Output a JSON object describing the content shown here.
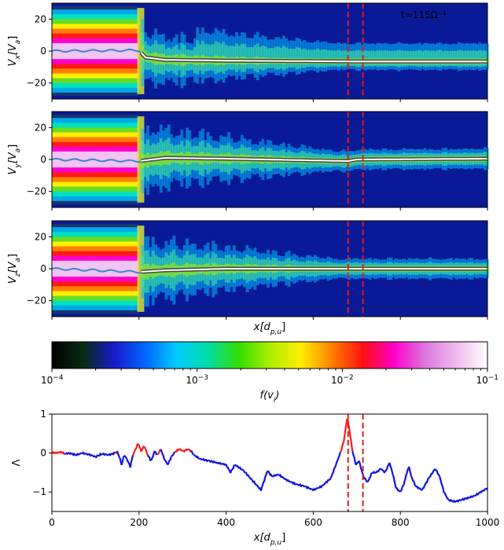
{
  "chart_data": [
    {
      "type": "heatmap",
      "ylabel": "V_x[V_a]",
      "ylabel_main": "V",
      "ylabel_sub": "x",
      "ylabel_unit": "[V",
      "ylabel_unit_sub": "a",
      "ylabel_close": "]",
      "ylim": [
        -30,
        30
      ],
      "yticks": [
        "20",
        "0",
        "−20"
      ],
      "ytick_values": [
        20,
        0,
        -20
      ],
      "annotation": "t=115Ω⁻¹",
      "mean_profile": [
        [
          0,
          0
        ],
        [
          200,
          0.5
        ],
        [
          215,
          -4
        ],
        [
          260,
          -5.5
        ],
        [
          400,
          -6
        ],
        [
          700,
          -6.5
        ],
        [
          1000,
          -6.5
        ]
      ]
    },
    {
      "type": "heatmap",
      "ylabel": "V_y[V_a]",
      "ylabel_main": "V",
      "ylabel_sub": "y",
      "ylabel_unit": "[V",
      "ylabel_unit_sub": "a",
      "ylabel_close": "]",
      "ylim": [
        -30,
        30
      ],
      "yticks": [
        "20",
        "0",
        "−20"
      ],
      "ytick_values": [
        20,
        0,
        -20
      ],
      "mean_profile": [
        [
          0,
          0
        ],
        [
          200,
          -1
        ],
        [
          260,
          1
        ],
        [
          400,
          0.5
        ],
        [
          680,
          -1
        ],
        [
          700,
          0
        ],
        [
          1000,
          0.5
        ]
      ]
    },
    {
      "type": "heatmap",
      "ylabel": "V_z[V_a]",
      "ylabel_main": "V",
      "ylabel_sub": "z",
      "ylabel_unit": "[V",
      "ylabel_unit_sub": "a",
      "ylabel_close": "]",
      "ylim": [
        -30,
        30
      ],
      "yticks": [
        "20",
        "0",
        "−20"
      ],
      "ytick_values": [
        20,
        0,
        -20
      ],
      "xlabel": "x[d_{p,u}]",
      "mean_profile": [
        [
          0,
          0
        ],
        [
          200,
          -2
        ],
        [
          260,
          -1
        ],
        [
          400,
          0
        ],
        [
          700,
          0
        ],
        [
          1000,
          0
        ]
      ]
    },
    {
      "type": "colorbar",
      "scale": "log",
      "label": "f(v_i)",
      "label_main": "f(v",
      "label_sub": "i",
      "label_close": ")",
      "ticks": [
        {
          "base": "10",
          "exp": "−4",
          "value": 0.0001
        },
        {
          "base": "10",
          "exp": "−3",
          "value": 0.001
        },
        {
          "base": "10",
          "exp": "−2",
          "value": 0.01
        },
        {
          "base": "10",
          "exp": "−1",
          "value": 0.1
        }
      ],
      "range": [
        0.0001,
        0.1
      ],
      "stops": [
        "#ffffff",
        "#eebbee",
        "#dd77dd",
        "#ff00cc",
        "#ff1010",
        "#ff7f00",
        "#ffee00",
        "#aaee00",
        "#33dd00",
        "#00ddaa",
        "#00ccff",
        "#0066ff",
        "#1a1acc",
        "#082a10",
        "#000000"
      ]
    },
    {
      "type": "line",
      "ylabel": "Λ",
      "xlabel": "x[d_{p,u}]",
      "xlabel_main": "x[d",
      "xlabel_sub": "p,u",
      "xlabel_close": "]",
      "xlim": [
        0,
        1000
      ],
      "ylim": [
        -1.5,
        1.0
      ],
      "xticks": [
        0,
        200,
        400,
        600,
        800,
        1000
      ],
      "yticks": [
        "1",
        "0",
        "−1"
      ],
      "ytick_values": [
        1,
        0,
        -1
      ],
      "series": [
        {
          "name": "Lambda",
          "colors": {
            "positive": "#ff1a1a",
            "negative": "#1414e6"
          },
          "points": [
            [
              0,
              0.02
            ],
            [
              10,
              0.0
            ],
            [
              20,
              0.03
            ],
            [
              30,
              -0.02
            ],
            [
              40,
              0.0
            ],
            [
              55,
              -0.05
            ],
            [
              70,
              0.0
            ],
            [
              90,
              -0.05
            ],
            [
              100,
              -0.1
            ],
            [
              115,
              -0.02
            ],
            [
              130,
              -0.05
            ],
            [
              145,
              0.0
            ],
            [
              150,
              0.03
            ],
            [
              155,
              -0.1
            ],
            [
              160,
              -0.3
            ],
            [
              166,
              -0.05
            ],
            [
              172,
              -0.15
            ],
            [
              180,
              -0.35
            ],
            [
              186,
              -0.05
            ],
            [
              192,
              0.1
            ],
            [
              198,
              0.25
            ],
            [
              205,
              0.05
            ],
            [
              212,
              0.18
            ],
            [
              220,
              -0.05
            ],
            [
              228,
              -0.2
            ],
            [
              236,
              0.05
            ],
            [
              242,
              -0.05
            ],
            [
              250,
              0.1
            ],
            [
              258,
              -0.15
            ],
            [
              266,
              -0.3
            ],
            [
              274,
              -0.1
            ],
            [
              282,
              0.02
            ],
            [
              292,
              0.1
            ],
            [
              302,
              0.05
            ],
            [
              312,
              0.1
            ],
            [
              320,
              0.05
            ],
            [
              326,
              -0.05
            ],
            [
              340,
              -0.15
            ],
            [
              360,
              -0.2
            ],
            [
              380,
              -0.25
            ],
            [
              400,
              -0.3
            ],
            [
              410,
              -0.5
            ],
            [
              420,
              -0.3
            ],
            [
              440,
              -0.45
            ],
            [
              460,
              -0.7
            ],
            [
              480,
              -0.95
            ],
            [
              495,
              -0.45
            ],
            [
              505,
              -0.6
            ],
            [
              520,
              -0.55
            ],
            [
              540,
              -0.7
            ],
            [
              560,
              -0.8
            ],
            [
              580,
              -0.85
            ],
            [
              600,
              -0.95
            ],
            [
              620,
              -0.85
            ],
            [
              640,
              -0.65
            ],
            [
              652,
              -0.3
            ],
            [
              662,
              0.0
            ],
            [
              670,
              0.3
            ],
            [
              678,
              0.9
            ],
            [
              683,
              0.6
            ],
            [
              690,
              0.05
            ],
            [
              698,
              -0.3
            ],
            [
              705,
              -0.2
            ],
            [
              715,
              -0.6
            ],
            [
              725,
              -0.75
            ],
            [
              735,
              -0.5
            ],
            [
              745,
              -0.5
            ],
            [
              755,
              -0.4
            ],
            [
              765,
              -0.5
            ],
            [
              775,
              -0.25
            ],
            [
              783,
              -0.55
            ],
            [
              790,
              -0.9
            ],
            [
              800,
              -1.0
            ],
            [
              808,
              -0.8
            ],
            [
              815,
              -0.5
            ],
            [
              820,
              -0.35
            ],
            [
              825,
              -0.6
            ],
            [
              835,
              -0.85
            ],
            [
              850,
              -0.95
            ],
            [
              865,
              -0.65
            ],
            [
              880,
              -0.4
            ],
            [
              890,
              -0.6
            ],
            [
              900,
              -1.0
            ],
            [
              910,
              -1.2
            ],
            [
              925,
              -1.25
            ],
            [
              940,
              -1.2
            ],
            [
              955,
              -1.15
            ],
            [
              970,
              -1.1
            ],
            [
              985,
              -1.0
            ],
            [
              1000,
              -0.9
            ]
          ]
        }
      ],
      "vlines": [
        680,
        714
      ],
      "vline_color": "#e81818"
    }
  ]
}
